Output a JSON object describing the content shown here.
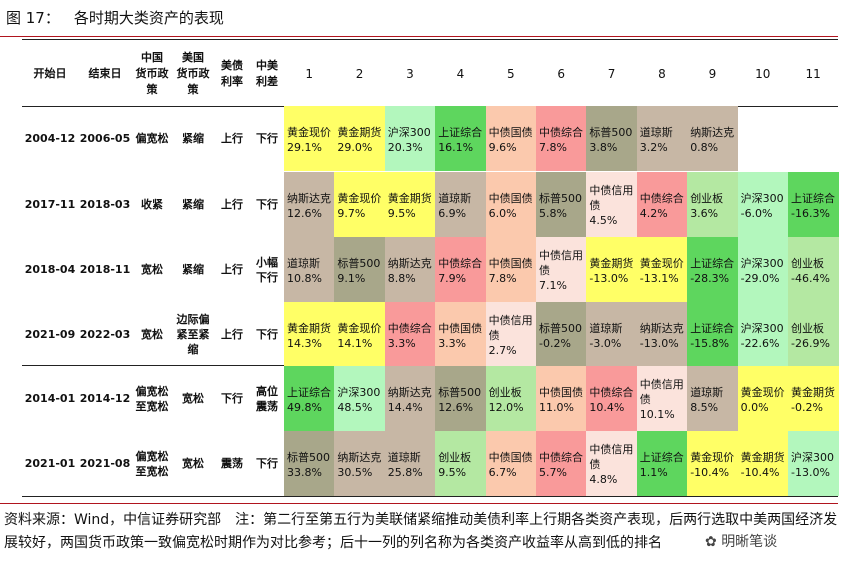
{
  "figure": {
    "label": "图 17：",
    "title": "各时期大类资产的表现"
  },
  "headers": {
    "start": "开始日",
    "end": "结束日",
    "cn_policy": [
      "中国",
      "货币政",
      "策"
    ],
    "us_policy": [
      "美国",
      "货币政",
      "策"
    ],
    "us_rate": [
      "美债",
      "利率"
    ],
    "spread": [
      "中美",
      "利差"
    ],
    "ranks": [
      "1",
      "2",
      "3",
      "4",
      "5",
      "6",
      "7",
      "8",
      "9",
      "10",
      "11"
    ]
  },
  "colors": {
    "黄金现价": "#ffff66",
    "黄金期货": "#ffff66",
    "沪深300": "#b3f7bd",
    "上证综合": "#5ed65e",
    "中债国债": "#fbc9ad",
    "中债综合": "#f99a9a",
    "标普500": "#a8a78a",
    "道琼斯": "#c7b7a5",
    "纳斯达克": "#c7b7a5",
    "中债信用债": "#fbe3dc",
    "创业板": "#b4e8a2",
    "white": "#ffffff"
  },
  "rows": [
    {
      "start": "2004-12",
      "end": "2006-05",
      "cn": [
        "偏宽松"
      ],
      "us": [
        "紧缩"
      ],
      "rate": [
        "上行"
      ],
      "spread": [
        "下行"
      ],
      "assets": [
        {
          "name": "黄金现价",
          "value": "29.1%"
        },
        {
          "name": "黄金期货",
          "value": "29.0%"
        },
        {
          "name": "沪深300",
          "value": "20.3%"
        },
        {
          "name": "上证综合",
          "value": "16.1%"
        },
        {
          "name": "中债国债",
          "value": "9.6%"
        },
        {
          "name": "中债综合",
          "value": "7.8%"
        },
        {
          "name": "标普500",
          "value": "3.8%"
        },
        {
          "name": "道琼斯",
          "value": "3.2%"
        },
        {
          "name": "纳斯达克",
          "value": "0.8%"
        }
      ]
    },
    {
      "start": "2017-11",
      "end": "2018-03",
      "cn": [
        "收紧"
      ],
      "us": [
        "紧缩"
      ],
      "rate": [
        "上行"
      ],
      "spread": [
        "下行"
      ],
      "assets": [
        {
          "name": "纳斯达克",
          "value": "12.6%"
        },
        {
          "name": "黄金现价",
          "value": "9.7%"
        },
        {
          "name": "黄金期货",
          "value": "9.5%"
        },
        {
          "name": "道琼斯",
          "value": "6.9%"
        },
        {
          "name": "中债国债",
          "value": "6.0%"
        },
        {
          "name": "标普500",
          "value": "5.8%"
        },
        {
          "name": "中债信用债",
          "lines": [
            "中债信用",
            "债"
          ],
          "value": "4.5%"
        },
        {
          "name": "中债综合",
          "value": "4.2%"
        },
        {
          "name": "创业板",
          "value": "3.6%"
        },
        {
          "name": "沪深300",
          "value": "-6.0%"
        },
        {
          "name": "上证综合",
          "value": "-16.3%"
        }
      ]
    },
    {
      "start": "2018-04",
      "end": "2018-11",
      "cn": [
        "宽松"
      ],
      "us": [
        "紧缩"
      ],
      "rate": [
        "上行"
      ],
      "spread": [
        "小幅",
        "下行"
      ],
      "assets": [
        {
          "name": "道琼斯",
          "value": "10.8%"
        },
        {
          "name": "标普500",
          "value": "9.1%"
        },
        {
          "name": "纳斯达克",
          "value": "8.8%"
        },
        {
          "name": "中债综合",
          "value": "7.9%"
        },
        {
          "name": "中债国债",
          "value": "7.8%"
        },
        {
          "name": "中债信用债",
          "lines": [
            "中债信用",
            "债"
          ],
          "value": "7.1%"
        },
        {
          "name": "黄金期货",
          "value": "-13.0%"
        },
        {
          "name": "黄金现价",
          "value": "-13.1%"
        },
        {
          "name": "上证综合",
          "value": "-28.3%"
        },
        {
          "name": "沪深300",
          "value": "-29.0%"
        },
        {
          "name": "创业板",
          "value": "-46.4%"
        }
      ]
    },
    {
      "start": "2021-09",
      "end": "2022-03",
      "cn": [
        "宽松"
      ],
      "us": [
        "边际偏",
        "紧至紧",
        "缩"
      ],
      "rate": [
        "上行"
      ],
      "spread": [
        "下行"
      ],
      "assets": [
        {
          "name": "黄金期货",
          "value": "14.3%"
        },
        {
          "name": "黄金现价",
          "value": "14.1%"
        },
        {
          "name": "中债综合",
          "value": "3.3%"
        },
        {
          "name": "中债国债",
          "value": "3.3%"
        },
        {
          "name": "中债信用债",
          "lines": [
            "中债信用",
            "债"
          ],
          "value": "2.7%"
        },
        {
          "name": "标普500",
          "value": "-0.2%"
        },
        {
          "name": "道琼斯",
          "value": "-3.0%"
        },
        {
          "name": "纳斯达克",
          "value": "-13.0%"
        },
        {
          "name": "上证综合",
          "value": "-15.8%"
        },
        {
          "name": "沪深300",
          "value": "-22.6%"
        },
        {
          "name": "创业板",
          "value": "-26.9%"
        }
      ]
    },
    {
      "start": "2014-01",
      "end": "2014-12",
      "cn": [
        "偏宽松",
        "至宽松"
      ],
      "us": [
        "宽松"
      ],
      "rate": [
        "下行"
      ],
      "spread": [
        "高位",
        "震荡"
      ],
      "assets": [
        {
          "name": "上证综合",
          "value": "49.8%"
        },
        {
          "name": "沪深300",
          "value": "48.5%"
        },
        {
          "name": "纳斯达克",
          "value": "14.4%"
        },
        {
          "name": "标普500",
          "value": "12.6%"
        },
        {
          "name": "创业板",
          "value": "12.0%"
        },
        {
          "name": "中债国债",
          "value": "11.0%"
        },
        {
          "name": "中债综合",
          "value": "10.4%"
        },
        {
          "name": "中债信用债",
          "lines": [
            "中债信用",
            "债"
          ],
          "value": "10.1%"
        },
        {
          "name": "道琼斯",
          "value": "8.5%"
        },
        {
          "name": "黄金现价",
          "value": "0.0%"
        },
        {
          "name": "黄金期货",
          "value": "-0.2%"
        }
      ]
    },
    {
      "start": "2021-01",
      "end": "2021-08",
      "cn": [
        "偏宽松",
        "至宽松"
      ],
      "us": [
        "宽松"
      ],
      "rate": [
        "震荡"
      ],
      "spread": [
        "下行"
      ],
      "assets": [
        {
          "name": "标普500",
          "value": "33.8%"
        },
        {
          "name": "纳斯达克",
          "value": "30.5%"
        },
        {
          "name": "道琼斯",
          "value": "25.8%"
        },
        {
          "name": "创业板",
          "value": "9.5%"
        },
        {
          "name": "中债国债",
          "value": "6.7%"
        },
        {
          "name": "中债综合",
          "value": "5.7%"
        },
        {
          "name": "中债信用债",
          "lines": [
            "中债信用",
            "债"
          ],
          "value": "4.8%"
        },
        {
          "name": "上证综合",
          "value": "1.1%"
        },
        {
          "name": "黄金现价",
          "value": "-10.4%"
        },
        {
          "name": "黄金期货",
          "value": "-10.4%"
        },
        {
          "name": "沪深300",
          "value": "-13.0%"
        }
      ]
    }
  ],
  "footnote": "资料来源：Wind，中信证券研究部　注：第二行至第五行为美联储紧缩推动美债利率上行期各类资产表现，后两行选取中美两国经济发展较好，两国货币政策一致偏宽松时期作为对比参考；后十一列的列名称为各类资产收益率从高到低的排名",
  "watermark": "明晰笔谈"
}
